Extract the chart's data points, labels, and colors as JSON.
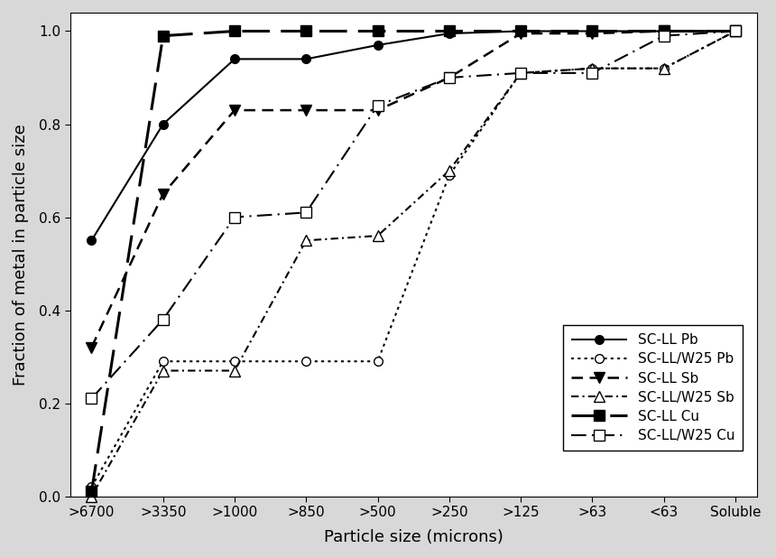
{
  "x_labels": [
    ">6700",
    ">3350",
    ">1000",
    ">850",
    ">500",
    ">250",
    ">125",
    ">63",
    "<63",
    "Soluble"
  ],
  "series": {
    "SC-LL Pb": {
      "values": [
        0.55,
        0.8,
        0.94,
        0.94,
        0.97,
        0.995,
        1.0,
        1.0,
        1.0,
        1.0
      ],
      "linestyle": "solid",
      "marker": "o",
      "markerfacecolor": "black",
      "linewidth": 1.5,
      "markersize": 7
    },
    "SC-LL/W25 Pb": {
      "values": [
        0.02,
        0.29,
        0.29,
        0.29,
        0.29,
        0.69,
        0.91,
        0.92,
        0.92,
        1.0
      ],
      "linestyle": "dotted",
      "marker": "o",
      "markerfacecolor": "white",
      "linewidth": 1.5,
      "markersize": 7
    },
    "SC-LL Sb": {
      "values": [
        0.32,
        0.65,
        0.83,
        0.83,
        0.83,
        0.9,
        0.995,
        0.995,
        1.0,
        1.0
      ],
      "linestyle": "dashed",
      "marker": "v",
      "markerfacecolor": "black",
      "linewidth": 1.8,
      "markersize": 8
    },
    "SC-LL/W25 Sb": {
      "values": [
        0.0,
        0.27,
        0.27,
        0.55,
        0.56,
        0.7,
        0.91,
        0.92,
        0.92,
        1.0
      ],
      "linestyle": "dashdot",
      "marker": "^",
      "markerfacecolor": "white",
      "linewidth": 1.5,
      "markersize": 8
    },
    "SC-LL Cu": {
      "values": [
        0.01,
        0.99,
        1.0,
        1.0,
        1.0,
        1.0,
        1.0,
        1.0,
        1.0,
        1.0
      ],
      "linestyle": "longdash",
      "marker": "s",
      "markerfacecolor": "black",
      "linewidth": 2.2,
      "markersize": 9
    },
    "SC-LL/W25 Cu": {
      "values": [
        0.21,
        0.38,
        0.6,
        0.61,
        0.84,
        0.9,
        0.91,
        0.91,
        0.99,
        1.0
      ],
      "linestyle": "longdashdot",
      "marker": "s",
      "markerfacecolor": "white",
      "linewidth": 1.5,
      "markersize": 8
    }
  },
  "xlabel": "Particle size (microns)",
  "ylabel": "Fraction of metal in particle size",
  "ylim": [
    0.0,
    1.04
  ],
  "background_color": "#d8d8d8",
  "plot_bg_color": "#ffffff",
  "axis_fontsize": 13,
  "tick_fontsize": 11,
  "legend_fontsize": 11
}
